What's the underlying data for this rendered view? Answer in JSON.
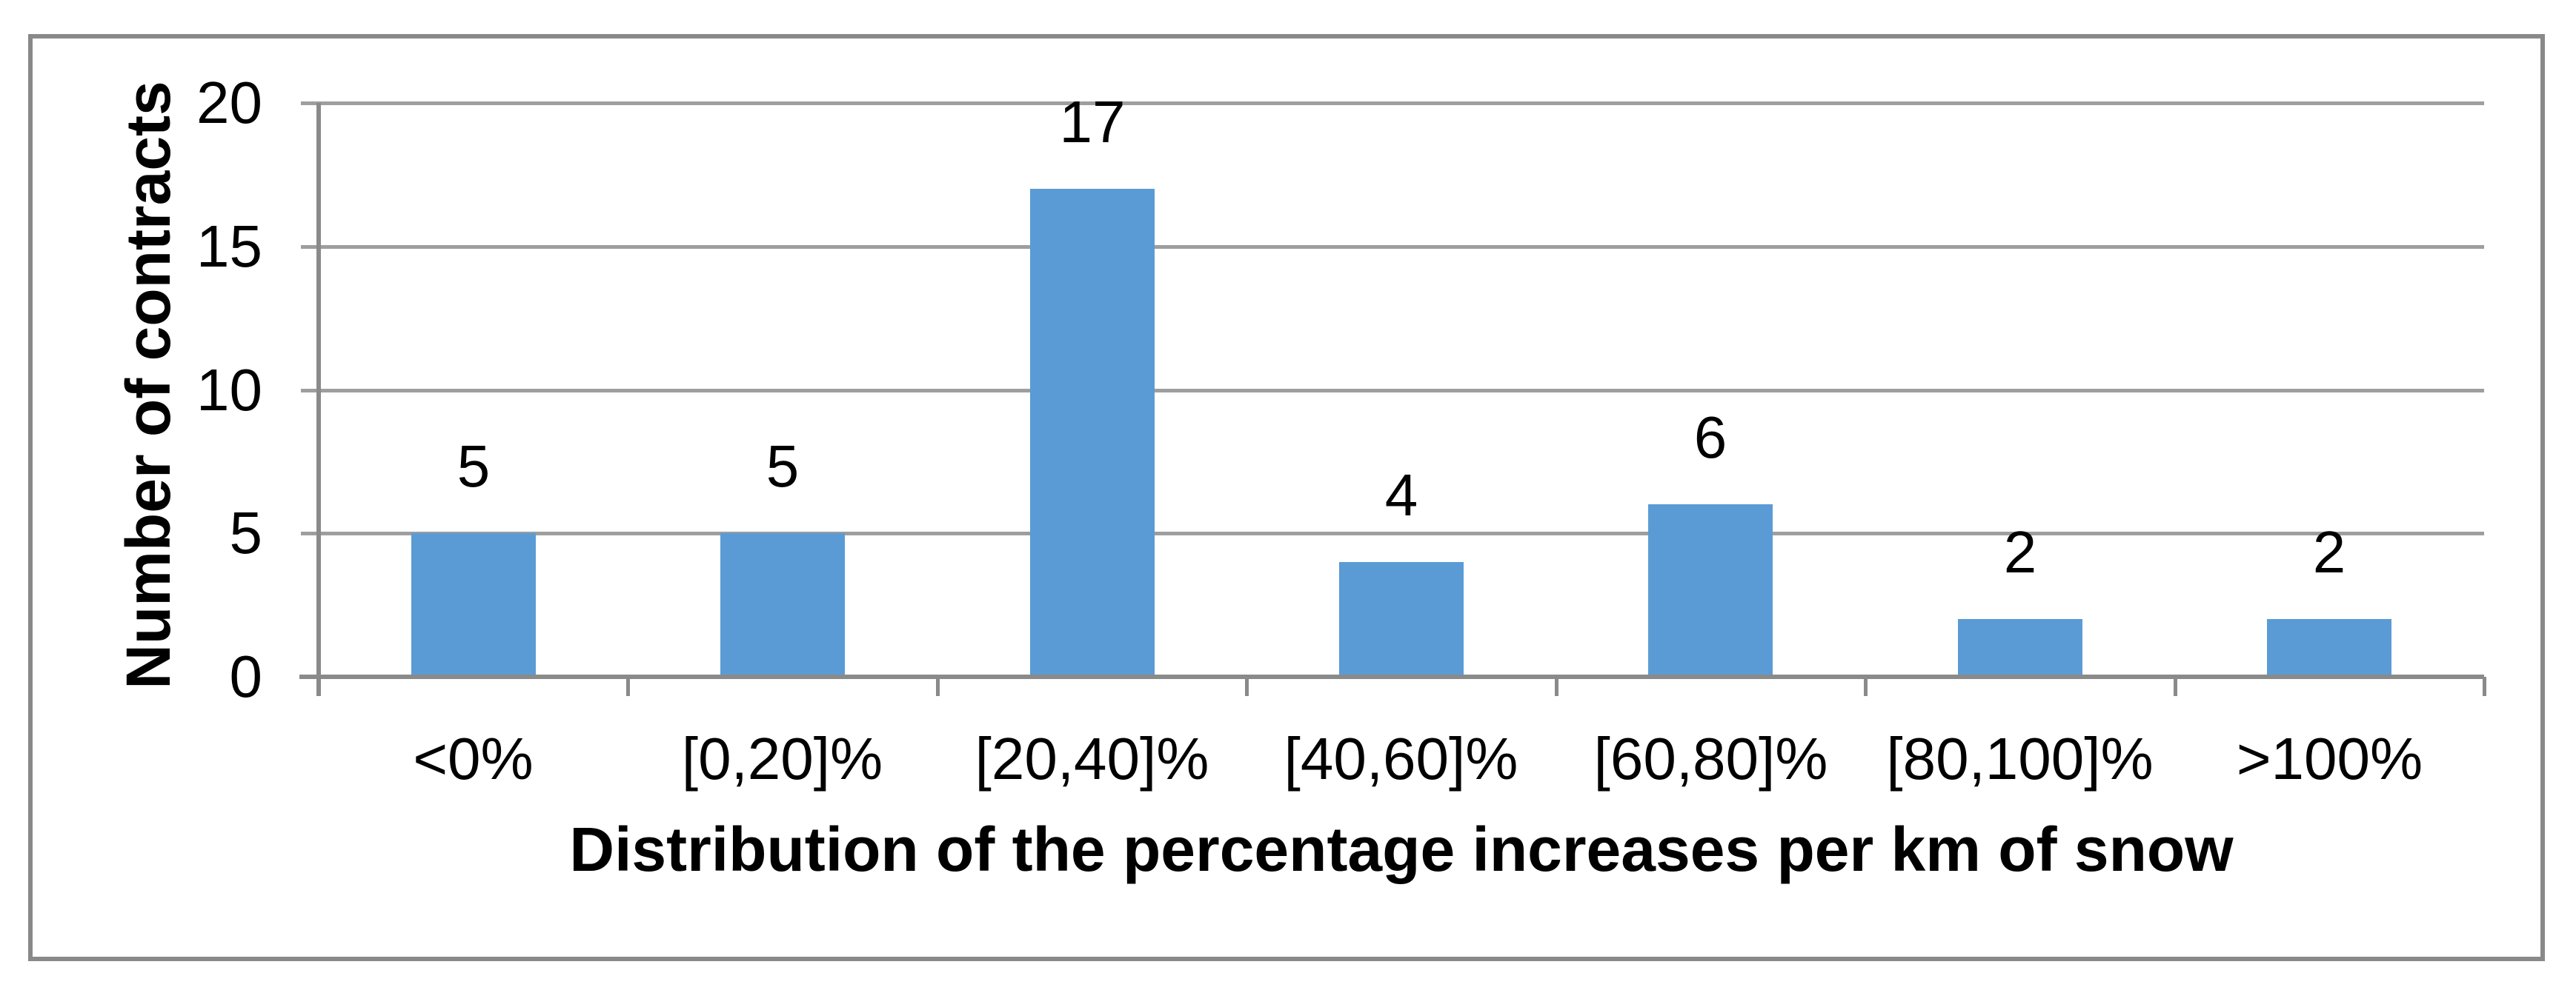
{
  "chart_data": {
    "type": "bar",
    "categories": [
      "<0%",
      "[0,20]%",
      "[20,40]%",
      "[40,60]%",
      "[60,80]%",
      "[80,100]%",
      ">100%"
    ],
    "values": [
      5,
      5,
      17,
      4,
      6,
      2,
      2
    ],
    "data_labels_shown": true,
    "xlabel": "Distribution of the percentage increases per km of snow",
    "ylabel": "Number of contracts",
    "yticks": [
      0,
      5,
      10,
      15,
      20
    ],
    "ylim": [
      0,
      20
    ],
    "grid": "horizontal",
    "legend_position": "none",
    "bar_color": "#5b9bd5",
    "gridline_color": "#9e9e9e",
    "axis_color": "#8a8a8a",
    "frame_color": "#898989",
    "text_color": "#000000"
  }
}
